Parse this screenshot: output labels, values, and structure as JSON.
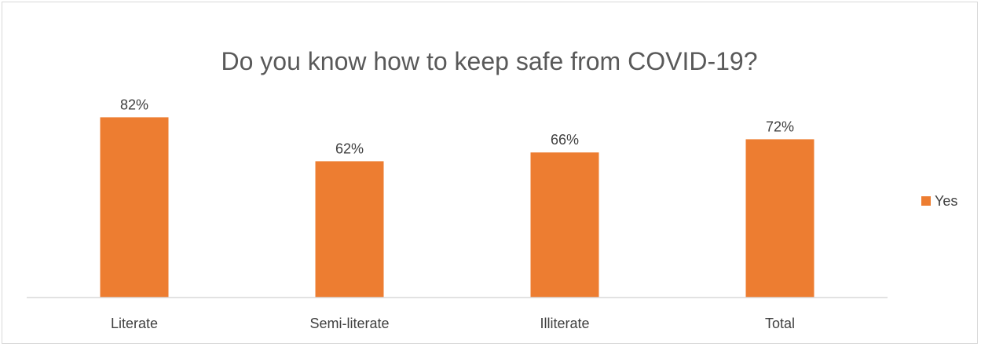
{
  "chart_data": {
    "type": "bar",
    "title": "Do you know how to keep safe from COVID-19?",
    "categories": [
      "Literate",
      "Semi-literate",
      "Illiterate",
      "Total"
    ],
    "series": [
      {
        "name": "Yes",
        "values": [
          82,
          62,
          66,
          72
        ],
        "color": "#ED7D31"
      }
    ],
    "data_labels": [
      "82%",
      "62%",
      "66%",
      "72%"
    ],
    "ylim": [
      0,
      100
    ],
    "grid": false,
    "legend": "right",
    "xlabel": "",
    "ylabel": ""
  }
}
